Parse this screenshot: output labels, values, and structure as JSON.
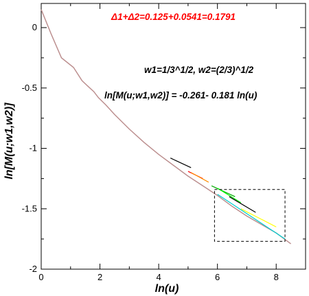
{
  "chart_data": {
    "type": "line",
    "xlabel": "ln(u)",
    "ylabel": "ln[M(u;w1,w2)]",
    "xlim": [
      0,
      9
    ],
    "ylim": [
      -2,
      0.2
    ],
    "x_ticks": [
      0,
      2,
      4,
      6,
      8
    ],
    "y_ticks": [
      0,
      -0.5,
      -1,
      -1.5,
      -2
    ],
    "x_tick_labels": [
      "0",
      "2",
      "4",
      "6",
      "8"
    ],
    "y_tick_labels": [
      "0",
      "-0.5",
      "-1",
      "-1.5",
      "-2"
    ],
    "grid": false,
    "annotations": {
      "delta_sum": "Δ1+Δ2=0.125+0.0541=0.1791",
      "weights": "w1=1/3^1/2, w2=(2/3)^1/2",
      "fit": "ln[M(u;w1,w2)] = -0.261- 0.181 ln(u)"
    },
    "series": [
      {
        "color": "#bc8f8f",
        "x": [
          0,
          0.35,
          0.69,
          1.1,
          1.39,
          1.61,
          1.79,
          1.95,
          2.2,
          2.5,
          3.0,
          3.5,
          4.0,
          4.5,
          5.0,
          5.5,
          6.0,
          6.5,
          7.0,
          7.5,
          8.0,
          8.5
        ],
        "y": [
          0.15,
          -0.06,
          -0.25,
          -0.33,
          -0.44,
          -0.49,
          -0.53,
          -0.58,
          -0.64,
          -0.72,
          -0.84,
          -0.95,
          -1.05,
          -1.14,
          -1.23,
          -1.31,
          -1.39,
          -1.48,
          -1.56,
          -1.63,
          -1.7,
          -1.79
        ]
      },
      {
        "color": "#000000",
        "x": [
          4.4,
          5.1
        ],
        "y": [
          -1.08,
          -1.16
        ]
      },
      {
        "color": "#ff0000",
        "x": [
          5.0,
          5.5
        ],
        "y": [
          -1.19,
          -1.25
        ]
      },
      {
        "color": "#ff8c00",
        "x": [
          5.1,
          5.7
        ],
        "y": [
          -1.2,
          -1.28
        ]
      },
      {
        "color": "#00aa00",
        "x": [
          5.8,
          6.6
        ],
        "y": [
          -1.31,
          -1.4
        ]
      },
      {
        "color": "#00ff00",
        "x": [
          6.0,
          6.8
        ],
        "y": [
          -1.33,
          -1.45
        ]
      },
      {
        "color": "#000000",
        "x": [
          6.4,
          7.3
        ],
        "y": [
          -1.4,
          -1.53
        ]
      },
      {
        "color": "#ffff00",
        "x": [
          6.8,
          8.0
        ],
        "y": [
          -1.5,
          -1.65
        ]
      },
      {
        "color": "#00ced1",
        "x": [
          6.0,
          8.3
        ],
        "y": [
          -1.38,
          -1.75
        ]
      }
    ],
    "inset_box": {
      "x": [
        5.9,
        8.3
      ],
      "y": [
        -1.77,
        -1.34
      ]
    }
  }
}
